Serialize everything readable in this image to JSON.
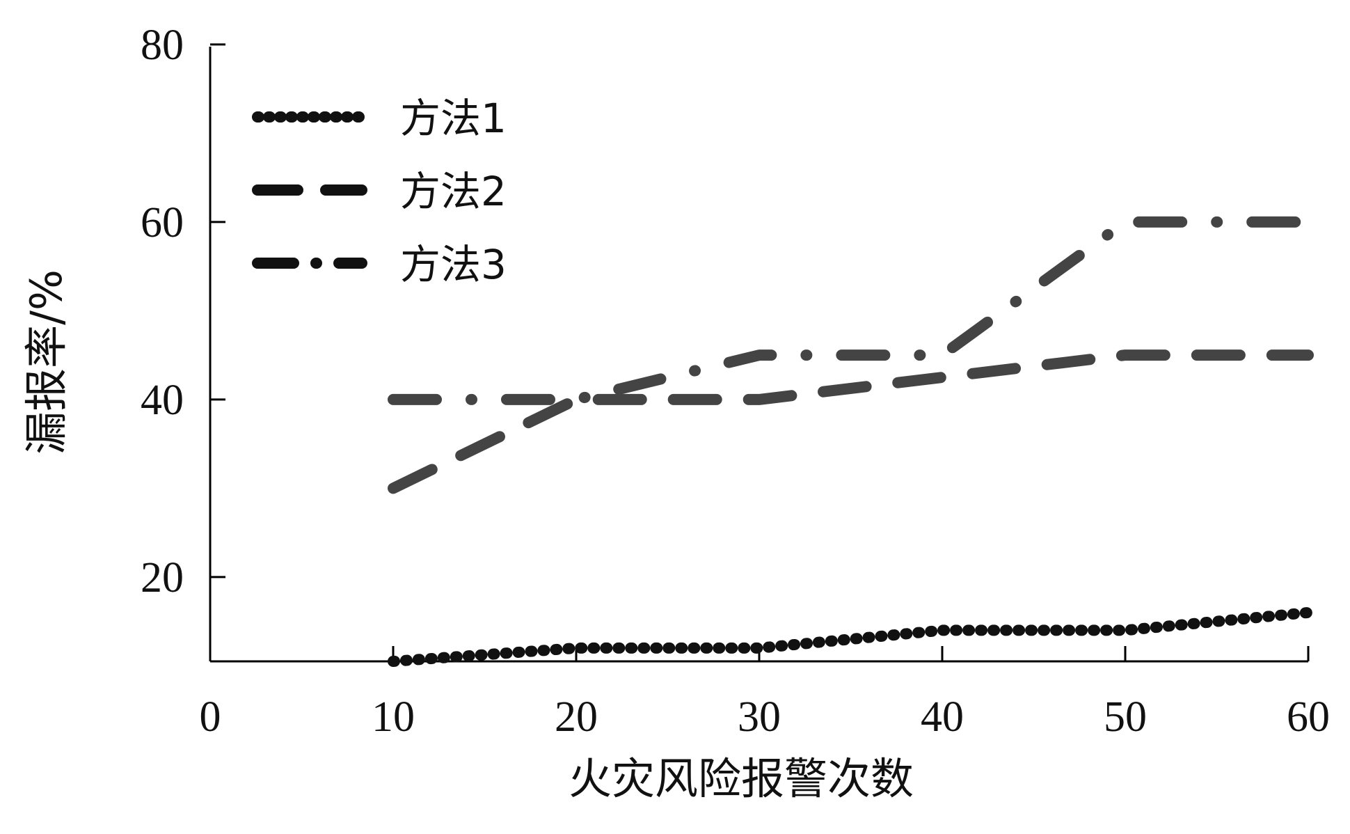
{
  "chart_data": {
    "type": "line",
    "title": "",
    "xlabel": "火灾风险报警次数",
    "ylabel": "漏报率/%",
    "x": [
      10,
      20,
      30,
      40,
      50,
      60
    ],
    "x_ticks": [
      "0",
      "10",
      "20",
      "30",
      "40",
      "50",
      "60"
    ],
    "y_ticks": [
      "80",
      "60",
      "40",
      "20"
    ],
    "xlim": [
      0,
      60
    ],
    "ylim": [
      10.5,
      80
    ],
    "grid": false,
    "legend_position": "top-left",
    "series": [
      {
        "name": "方法1",
        "values": [
          10.5,
          12,
          12,
          14,
          14,
          16
        ],
        "style": "dotted",
        "color": "#111111"
      },
      {
        "name": "方法2",
        "values": [
          30,
          40,
          40,
          42.5,
          45,
          45
        ],
        "style": "dashed",
        "color": "#444444"
      },
      {
        "name": "方法3",
        "values": [
          40,
          40,
          45,
          45,
          60,
          60
        ],
        "style": "dash-dot",
        "color": "#444444"
      }
    ]
  }
}
